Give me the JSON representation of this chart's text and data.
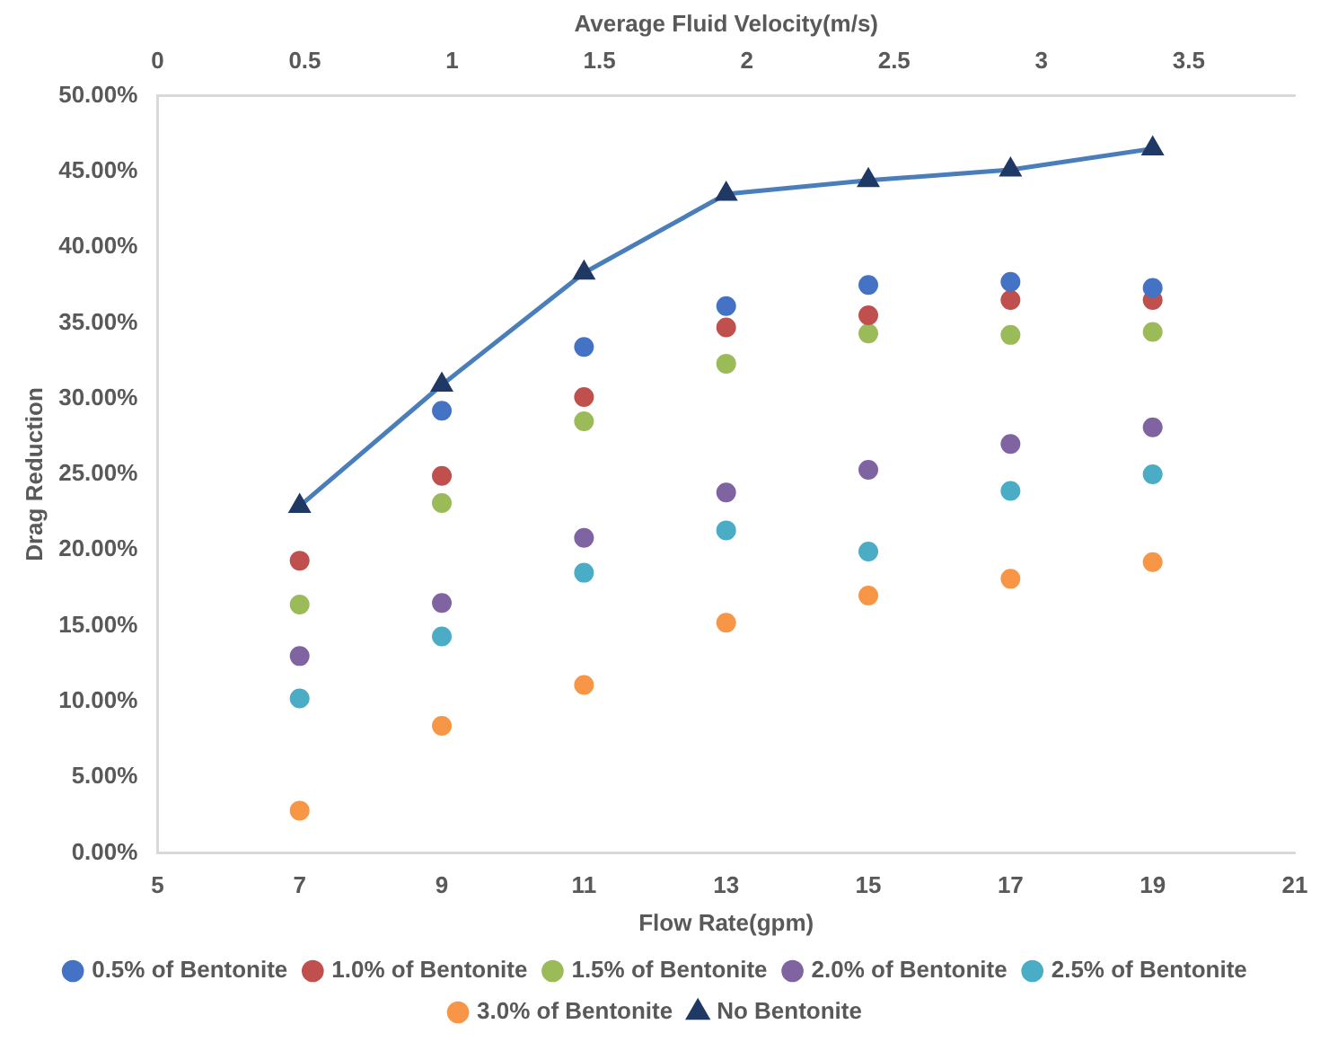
{
  "chart_data": {
    "type": "scatter",
    "xlabel": "Flow Rate(gpm)",
    "ylabel": "Drag Reduction",
    "x2label": "Average Fluid Velocity(m/s)",
    "x": [
      7,
      9,
      11,
      13,
      15,
      17,
      19
    ],
    "xlim": [
      5,
      21
    ],
    "xticks": [
      5,
      7,
      9,
      11,
      13,
      15,
      17,
      19,
      21
    ],
    "x2lim": [
      0,
      3.86
    ],
    "x2ticks": [
      0,
      0.5,
      1,
      1.5,
      2,
      2.5,
      3,
      3.5
    ],
    "ylim": [
      0,
      50
    ],
    "yticks": [
      {
        "value": 0,
        "label": "0.00%"
      },
      {
        "value": 5,
        "label": "5.00%"
      },
      {
        "value": 10,
        "label": "10.00%"
      },
      {
        "value": 15,
        "label": "15.00%"
      },
      {
        "value": 20,
        "label": "20.00%"
      },
      {
        "value": 25,
        "label": "25.00%"
      },
      {
        "value": 30,
        "label": "30.00%"
      },
      {
        "value": 35,
        "label": "35.00%"
      },
      {
        "value": 40,
        "label": "40.00%"
      },
      {
        "value": 45,
        "label": "45.00%"
      },
      {
        "value": 50,
        "label": "50.00%"
      }
    ],
    "grid": false,
    "legend": "bottom",
    "series": [
      {
        "name": "0.5% of Bentonite",
        "marker": "circle",
        "color": "#4472c4",
        "values": [
          null,
          29.2,
          33.4,
          36.1,
          37.5,
          37.7,
          37.3
        ]
      },
      {
        "name": "1.0% of Bentonite",
        "marker": "circle",
        "color": "#c0504d",
        "values": [
          19.3,
          24.9,
          30.1,
          34.7,
          35.5,
          36.5,
          36.5
        ]
      },
      {
        "name": "1.5% of Bentonite",
        "marker": "circle",
        "color": "#9bbb59",
        "values": [
          16.4,
          23.1,
          28.5,
          32.3,
          34.3,
          34.2,
          34.4
        ]
      },
      {
        "name": "2.0% of Bentonite",
        "marker": "circle",
        "color": "#8064a2",
        "values": [
          13.0,
          16.5,
          20.8,
          23.8,
          25.3,
          27.0,
          28.1
        ]
      },
      {
        "name": "2.5% of Bentonite",
        "marker": "circle",
        "color": "#4bacc6",
        "values": [
          10.2,
          14.3,
          18.5,
          21.3,
          19.9,
          23.9,
          25.0
        ]
      },
      {
        "name": "3.0% of Bentonite",
        "marker": "circle",
        "color": "#f79646",
        "values": [
          2.8,
          8.4,
          11.1,
          15.2,
          17.0,
          18.1,
          19.2
        ]
      },
      {
        "name": "No Bentonite",
        "type": "line",
        "marker": "triangle",
        "line_style": "solid",
        "color": "#4a7ebb",
        "values": [
          22.9,
          30.9,
          38.3,
          43.5,
          44.4,
          45.1,
          46.5
        ]
      }
    ]
  }
}
